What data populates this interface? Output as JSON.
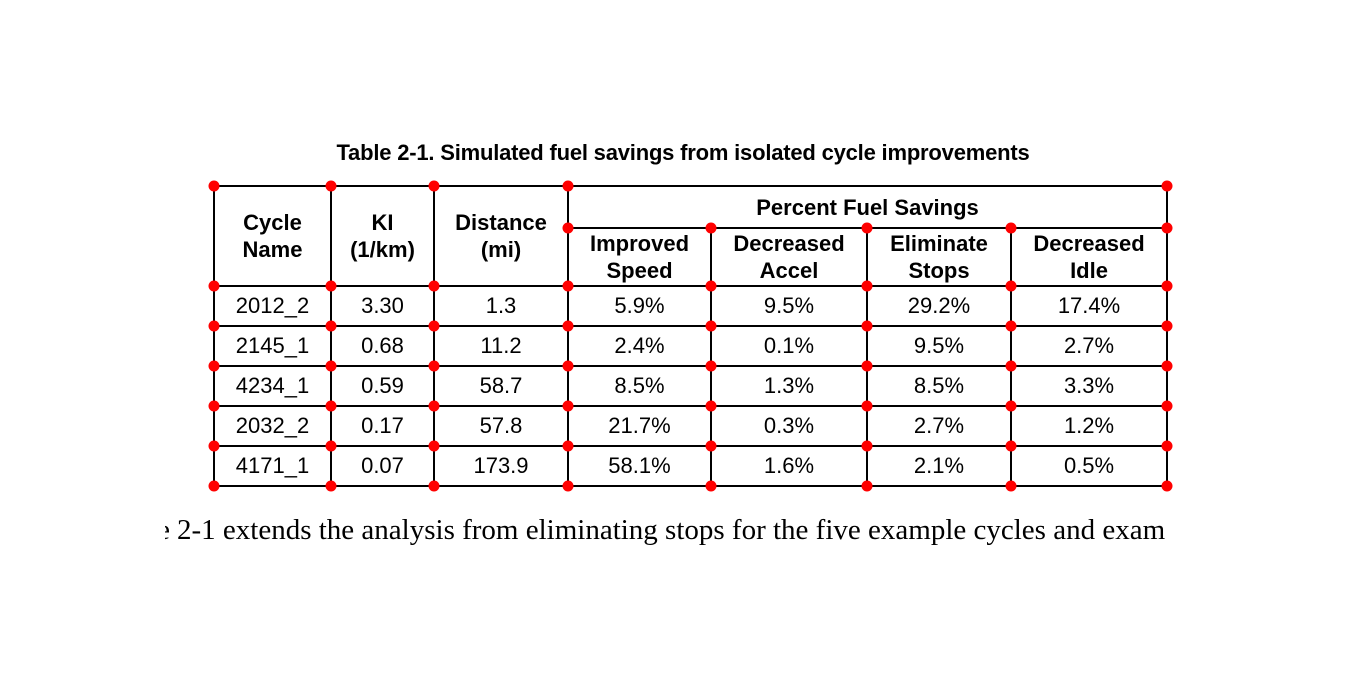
{
  "page": {
    "title": "Table 2-1. Simulated fuel savings from isolated cycle improvements"
  },
  "table": {
    "group_header": "Percent Fuel Savings",
    "row_headers": [
      "Cycle\nName",
      "KI\n(1/km)",
      "Distance\n(mi)"
    ],
    "sub_headers": [
      "Improved\nSpeed",
      "Decreased\nAccel",
      "Eliminate\nStops",
      "Decreased\nIdle"
    ],
    "rows": [
      [
        "2012_2",
        "3.30",
        "1.3",
        "5.9%",
        "9.5%",
        "29.2%",
        "17.4%"
      ],
      [
        "2145_1",
        "0.68",
        "11.2",
        "2.4%",
        "0.1%",
        "9.5%",
        "2.7%"
      ],
      [
        "4234_1",
        "0.59",
        "58.7",
        "8.5%",
        "1.3%",
        "8.5%",
        "3.3%"
      ],
      [
        "2032_2",
        "0.17",
        "57.8",
        "21.7%",
        "0.3%",
        "2.7%",
        "1.2%"
      ],
      [
        "4171_1",
        "0.07",
        "173.9",
        "58.1%",
        "1.6%",
        "2.1%",
        "0.5%"
      ]
    ]
  },
  "caption": {
    "fragment": "e",
    "visible_text": "2-1 extends the analysis from eliminating stops for the five example cycles and exam"
  },
  "annotation": {
    "marker_color": "#ff0000"
  }
}
